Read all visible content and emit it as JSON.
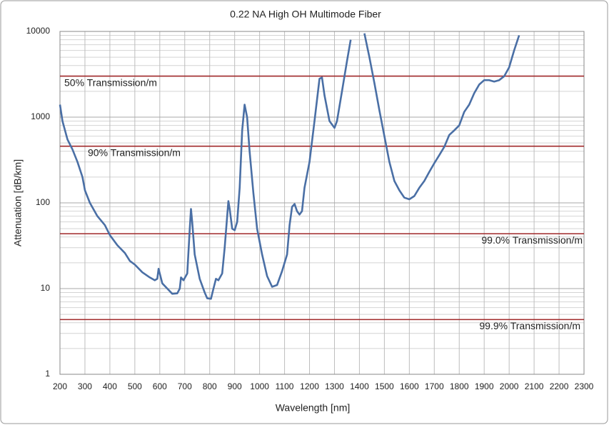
{
  "chart_data": {
    "type": "line",
    "title": "0.22 NA High OH Multimode Fiber",
    "x_label": "Wavelength [nm]",
    "y_label": "Attenuation [dB/km]",
    "xlim": [
      200,
      2300
    ],
    "ylim": [
      1,
      10000
    ],
    "y_scale": "log",
    "grid": true,
    "xticks": [
      200,
      300,
      400,
      500,
      600,
      700,
      800,
      900,
      1000,
      1100,
      1200,
      1300,
      1400,
      1500,
      1600,
      1700,
      1800,
      1900,
      2000,
      2100,
      2200,
      2300
    ],
    "yticks": [
      1,
      10,
      100,
      1000,
      10000
    ],
    "x": [
      200,
      210,
      230,
      250,
      270,
      290,
      300,
      320,
      350,
      380,
      400,
      430,
      460,
      480,
      500,
      530,
      560,
      580,
      590,
      595,
      600,
      610,
      630,
      650,
      670,
      680,
      685,
      695,
      710,
      720,
      725,
      730,
      740,
      760,
      780,
      790,
      805,
      815,
      825,
      835,
      850,
      860,
      870,
      875,
      880,
      890,
      900,
      910,
      920,
      930,
      940,
      950,
      960,
      975,
      990,
      1010,
      1030,
      1050,
      1070,
      1090,
      1110,
      1120,
      1130,
      1140,
      1150,
      1160,
      1170,
      1180,
      1200,
      1220,
      1240,
      1250,
      1260,
      1280,
      1300,
      1310,
      1330,
      1350,
      1365,
      1390,
      1420,
      1440,
      1460,
      1480,
      1500,
      1520,
      1540,
      1560,
      1580,
      1600,
      1620,
      1640,
      1660,
      1680,
      1700,
      1720,
      1740,
      1760,
      1780,
      1800,
      1820,
      1840,
      1860,
      1880,
      1900,
      1920,
      1940,
      1960,
      1980,
      2000,
      2020,
      2040
    ],
    "series": [
      {
        "name": "Attenuation",
        "color": "#4a6fa5",
        "values": [
          1400,
          900,
          550,
          420,
          300,
          200,
          140,
          100,
          70,
          55,
          42,
          32,
          26,
          21,
          19,
          15.5,
          13.5,
          12.5,
          13,
          17,
          15,
          11.5,
          10,
          8.7,
          8.8,
          10,
          13.5,
          12.5,
          15,
          50,
          85,
          60,
          25,
          13,
          9,
          7.7,
          7.6,
          10,
          13,
          12.5,
          15,
          30,
          70,
          105,
          85,
          50,
          48,
          60,
          150,
          700,
          1400,
          1000,
          400,
          130,
          50,
          25,
          14,
          10.5,
          11,
          16,
          25,
          55,
          90,
          97,
          80,
          73,
          80,
          150,
          300,
          900,
          2800,
          2900,
          1800,
          900,
          750,
          900,
          2000,
          4500,
          8000,
          null,
          9500,
          5000,
          2500,
          1200,
          600,
          300,
          180,
          140,
          115,
          110,
          120,
          150,
          180,
          230,
          290,
          360,
          450,
          620,
          700,
          800,
          1150,
          1400,
          1900,
          2400,
          2700,
          2700,
          2600,
          2700,
          3000,
          3800,
          6000,
          9000
        ]
      }
    ],
    "reference_lines": [
      {
        "label": "50% Transmission/m",
        "value": 3010,
        "color": "#a0282a"
      },
      {
        "label": "90% Transmission/m",
        "value": 458,
        "color": "#a0282a"
      },
      {
        "label": "99.0% Transmission/m",
        "value": 43.6,
        "color": "#a0282a"
      },
      {
        "label": "99.9% Transmission/m",
        "value": 4.35,
        "color": "#a0282a"
      }
    ]
  }
}
